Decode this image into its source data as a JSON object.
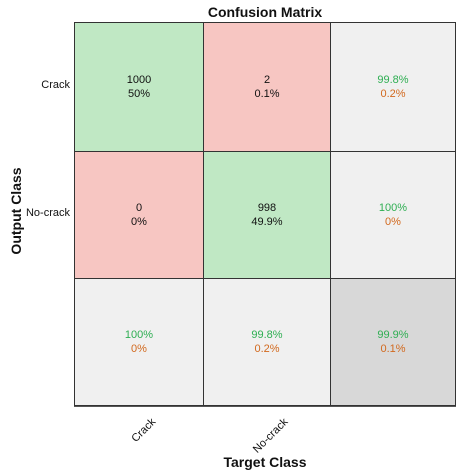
{
  "chart_data": {
    "type": "table",
    "title": "Confusion Matrix",
    "xlabel": "Target Class",
    "ylabel": "Output Class",
    "classes": [
      "Crack",
      "No-crack"
    ],
    "matrix": [
      {
        "count": "1000",
        "percent": "50%"
      },
      {
        "count": "2",
        "percent": "0.1%"
      },
      {
        "count": "0",
        "percent": "0%"
      },
      {
        "count": "998",
        "percent": "49.9%"
      }
    ],
    "row_summary": [
      {
        "correct": "99.8%",
        "incorrect": "0.2%"
      },
      {
        "correct": "100%",
        "incorrect": "0%"
      }
    ],
    "col_summary": [
      {
        "correct": "100%",
        "incorrect": "0%"
      },
      {
        "correct": "99.8%",
        "incorrect": "0.2%"
      }
    ],
    "overall": {
      "correct": "99.9%",
      "incorrect": "0.1%"
    },
    "colors": {
      "correct_cell": "#c0e8c4",
      "error_cell": "#f7c6c2",
      "summary_cell": "#f0f0f0",
      "overall_cell": "#d8d8d8",
      "correct_text": "#2eae52",
      "incorrect_text": "#d2691e"
    }
  }
}
